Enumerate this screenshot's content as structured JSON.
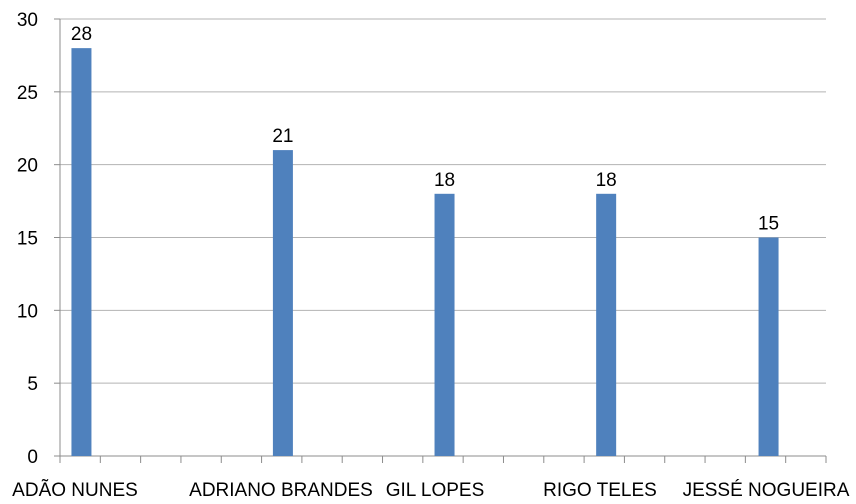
{
  "chart_data": {
    "type": "bar",
    "categories": [
      "ADÃO NUNES",
      "ADRIANO BRANDES",
      "GIL LOPES",
      "RIGO TELES",
      "JESSÉ NOGUEIRA"
    ],
    "values": [
      28,
      21,
      18,
      18,
      15
    ],
    "data_labels": [
      "28",
      "21",
      "18",
      "18",
      "15"
    ],
    "ylim": [
      0,
      30
    ],
    "yticks": [
      0,
      5,
      10,
      15,
      20,
      25,
      30
    ],
    "ytick_labels": [
      "0",
      "5",
      "10",
      "15",
      "20",
      "25",
      "30"
    ],
    "grid": true,
    "legend": "none",
    "colors": {
      "bar": "#4f81bd",
      "grid": "#b3b3b3",
      "axis": "#8c8c8c"
    }
  }
}
